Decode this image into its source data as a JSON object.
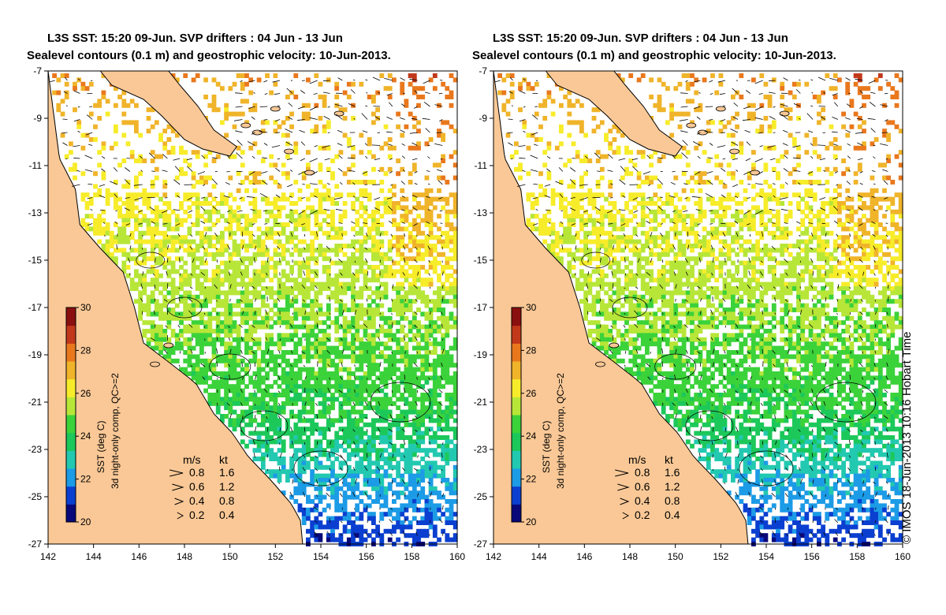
{
  "panels": [
    {
      "title_line1": "L3S SST: 15:20 09-Jun. SVP drifters : 04 Jun - 13 Jun",
      "title_line2": "Sealevel contours (0.1 m) and geostrophic velocity: 10-Jun-2013."
    },
    {
      "title_line1": "L3S SST: 15:20 09-Jun. SVP drifters : 04 Jun - 13 Jun",
      "title_line2": "Sealevel contours (0.1 m) and geostrophic velocity: 10-Jun-2013."
    }
  ],
  "axes": {
    "lon_ticks": [
      "142",
      "144",
      "146",
      "148",
      "150",
      "152",
      "154",
      "156",
      "158",
      "160"
    ],
    "lat_ticks": [
      "-7",
      "-9",
      "-11",
      "-13",
      "-15",
      "-17",
      "-19",
      "-21",
      "-23",
      "-25",
      "-27"
    ],
    "lon_range": [
      142,
      160
    ],
    "lat_range": [
      -27,
      -7
    ]
  },
  "colorbar": {
    "label": "SST (deg C)",
    "sublabel": "3d night-only comp, QC>=2",
    "ticks": [
      "30",
      "28",
      "26",
      "24",
      "22",
      "20"
    ],
    "range": [
      20,
      30
    ]
  },
  "velocity_legend": {
    "header_ms": "m/s",
    "header_kt": "kt",
    "rows": [
      {
        "ms": "0.8",
        "kt": "1.6",
        "speed": 0.8
      },
      {
        "ms": "0.6",
        "kt": "1.2",
        "speed": 0.6
      },
      {
        "ms": "0.4",
        "kt": "0.8",
        "speed": 0.4
      },
      {
        "ms": "0.2",
        "kt": "0.4",
        "speed": 0.2
      }
    ]
  },
  "credit": "© IMOS 18-Jun-2013 10:16 Hobart Time",
  "colors": {
    "land": "#f9c896",
    "sst_scale": [
      "#08087a",
      "#0b3fd0",
      "#1c9be6",
      "#22c9b0",
      "#1cc85a",
      "#3bd23a",
      "#b7e638",
      "#f7ec2a",
      "#f0b42a",
      "#e9781d",
      "#c2381a",
      "#8a0f0f"
    ]
  }
}
